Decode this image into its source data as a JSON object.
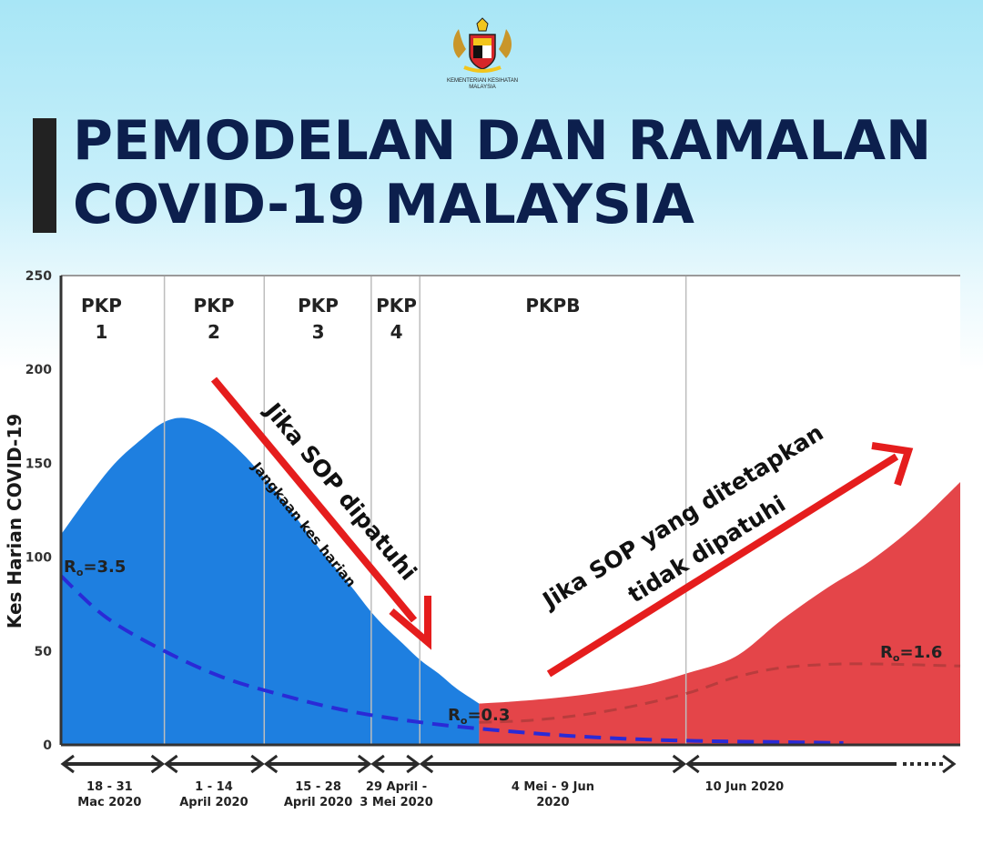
{
  "header": {
    "logo_caption_line1": "KEMENTERIAN KESIHATAN",
    "logo_caption_line2": "MALAYSIA",
    "title_line1": "PEMODELAN DAN RAMALAN",
    "title_line2": "COVID-19 MALAYSIA"
  },
  "colors": {
    "blue_area": "#1e7fe0",
    "red_area": "#e44549",
    "arrow_red": "#e51d1d",
    "dashed_blue": "#2a2ad6",
    "dashed_red": "#b23b3b",
    "title_navy": "#0c1f4d",
    "phase_line": "#bdbdbd"
  },
  "chart_data": {
    "type": "area",
    "ylabel": "Kes Harian COVID-19",
    "ylim": [
      0,
      250
    ],
    "yticks": [
      "0",
      "50",
      "100",
      "150",
      "200",
      "250"
    ],
    "xlim": [
      0,
      100
    ],
    "phase_boundaries": [
      0,
      11.5,
      22.6,
      34.5,
      39.9,
      69.5,
      100
    ],
    "phases": [
      {
        "label_line1": "PKP",
        "label_line2": "1",
        "date_line1": "18 - 31",
        "date_line2": "Mac 2020"
      },
      {
        "label_line1": "PKP",
        "label_line2": "2",
        "date_line1": "1 - 14",
        "date_line2": "April 2020"
      },
      {
        "label_line1": "PKP",
        "label_line2": "3",
        "date_line1": "15 - 28",
        "date_line2": "April 2020"
      },
      {
        "label_line1": "PKP",
        "label_line2": "4",
        "date_line1": "29 April -",
        "date_line2": "3 Mei 2020"
      },
      {
        "label_line1": "PKPB",
        "label_line2": "",
        "date_line1": "4 Mei - 9 Jun",
        "date_line2": "2020"
      },
      {
        "label_line1": "",
        "label_line2": "",
        "date_line1": "10 Jun 2020",
        "date_line2": ""
      }
    ],
    "series": [
      {
        "x": [
          0,
          3,
          6,
          9,
          11.5,
          14,
          17,
          20,
          23,
          26,
          29,
          32,
          35,
          38,
          40,
          42,
          44,
          46.5
        ],
        "y": [
          112,
          132,
          150,
          163,
          172,
          174,
          168,
          156,
          140,
          122,
          103,
          86,
          68,
          54,
          45,
          38,
          30,
          22
        ]
      },
      {
        "x": [
          46.5,
          50,
          55,
          60,
          65,
          69.5,
          75,
          80,
          85,
          90,
          95,
          100
        ],
        "y": [
          22,
          23,
          25,
          28,
          32,
          38,
          47,
          66,
          83,
          98,
          117,
          140
        ]
      },
      {
        "x": [
          0,
          5,
          11.5,
          18,
          25,
          32,
          40,
          48,
          56,
          64,
          72,
          80,
          87
        ],
        "y": [
          90,
          68,
          50,
          36,
          26,
          18,
          12,
          8,
          5,
          3,
          2,
          1.5,
          1
        ]
      },
      {
        "x": [
          46.5,
          52,
          58,
          64,
          70,
          75,
          80,
          86,
          92,
          100
        ],
        "y": [
          12,
          13,
          16,
          21,
          28,
          36,
          41,
          43,
          43,
          42
        ]
      }
    ],
    "annotations": {
      "r0_start": "=3.5",
      "r0_mid": "=0.3",
      "r0_end": "=1.6",
      "r0_letter": "R",
      "r0_sub": "o",
      "arrow_down_label": "Jika SOP dipatuhi",
      "curve_label": "Jangkaan kes harian",
      "arrow_up_line1": "Jika SOP yang ditetapkan",
      "arrow_up_line2": "tidak dipatuhi"
    }
  }
}
